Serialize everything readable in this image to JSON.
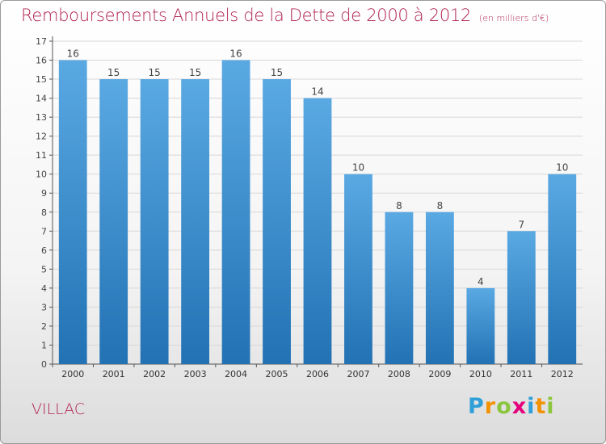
{
  "title": "Remboursements Annuels de la Dette de 2000 à 2012",
  "unit": "(en milliers d'€)",
  "location": "VILLAC",
  "logo": {
    "letters": [
      "P",
      "r",
      "o",
      "x",
      "i",
      "t",
      "i"
    ],
    "colors": [
      "#2f9fd8",
      "#f39200",
      "#8cc63f",
      "#e4007c",
      "#2f9fd8",
      "#f39200",
      "#8cc63f"
    ]
  },
  "chart_data": {
    "type": "bar",
    "title": "Remboursements Annuels de la Dette de 2000 à 2012",
    "xlabel": "",
    "ylabel": "",
    "categories": [
      "2000",
      "2001",
      "2002",
      "2003",
      "2004",
      "2005",
      "2006",
      "2007",
      "2008",
      "2009",
      "2010",
      "2011",
      "2012"
    ],
    "values": [
      16,
      15,
      15,
      15,
      16,
      15,
      14,
      10,
      8,
      8,
      4,
      7,
      10
    ],
    "ylim": [
      0,
      17
    ],
    "yticks": [
      0,
      1,
      2,
      3,
      4,
      5,
      6,
      7,
      8,
      9,
      10,
      11,
      12,
      13,
      14,
      15,
      16,
      17
    ],
    "grid": true,
    "data_labels": true,
    "bar_color_top": "#5aa9e3",
    "bar_color_bottom": "#2272b4"
  }
}
